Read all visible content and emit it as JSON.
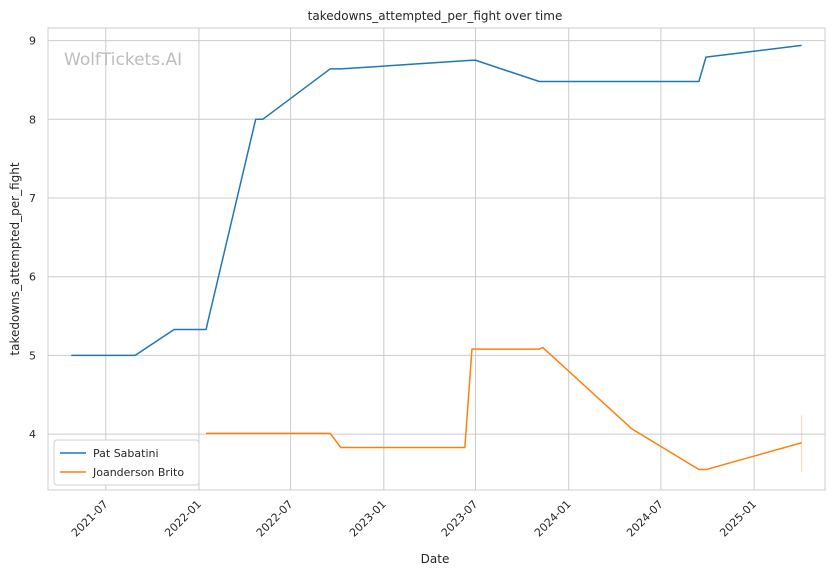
{
  "chart_data": {
    "type": "line",
    "title": "takedowns_attempted_per_fight over time",
    "xlabel": "Date",
    "ylabel": "takedowns_attempted_per_fight",
    "watermark": "WolfTickets.AI",
    "x_ticks": [
      "2021-07",
      "2022-01",
      "2022-07",
      "2023-01",
      "2023-07",
      "2024-01",
      "2024-07",
      "2025-01"
    ],
    "y_ticks": [
      "4",
      "5",
      "6",
      "7",
      "8",
      "9"
    ],
    "ylim": [
      3.29,
      9.16
    ],
    "xlim": [
      "2021-03-09",
      "2025-05-21"
    ],
    "grid": true,
    "legend_position": "lower-left",
    "series": [
      {
        "name": "Pat Sabatini",
        "color": "#1f77b4",
        "points": [
          [
            "2021-04-24",
            5.0
          ],
          [
            "2021-08-28",
            5.0
          ],
          [
            "2021-11-13",
            5.33
          ],
          [
            "2022-01-15",
            5.33
          ],
          [
            "2022-04-23",
            8.0
          ],
          [
            "2022-05-07",
            8.0
          ],
          [
            "2022-09-17",
            8.64
          ],
          [
            "2022-10-08",
            8.64
          ],
          [
            "2023-06-24",
            8.75
          ],
          [
            "2023-07-01",
            8.75
          ],
          [
            "2023-11-04",
            8.48
          ],
          [
            "2024-09-14",
            8.48
          ],
          [
            "2024-09-28",
            8.79
          ],
          [
            "2025-04-05",
            8.94
          ]
        ]
      },
      {
        "name": "Joanderson Brito",
        "color": "#ff7f0e",
        "points": [
          [
            "2022-01-15",
            4.01
          ],
          [
            "2022-09-17",
            4.01
          ],
          [
            "2022-10-08",
            3.83
          ],
          [
            "2023-06-10",
            3.83
          ],
          [
            "2023-06-24",
            5.08
          ],
          [
            "2023-11-04",
            5.08
          ],
          [
            "2023-11-11",
            5.1
          ],
          [
            "2024-05-04",
            4.07
          ],
          [
            "2024-09-14",
            3.55
          ],
          [
            "2024-09-28",
            3.55
          ],
          [
            "2025-04-05",
            3.89
          ]
        ]
      }
    ],
    "error_bar": {
      "x": "2025-04-05",
      "low": 3.52,
      "high": 4.24,
      "color": "#ff7f0e"
    }
  }
}
